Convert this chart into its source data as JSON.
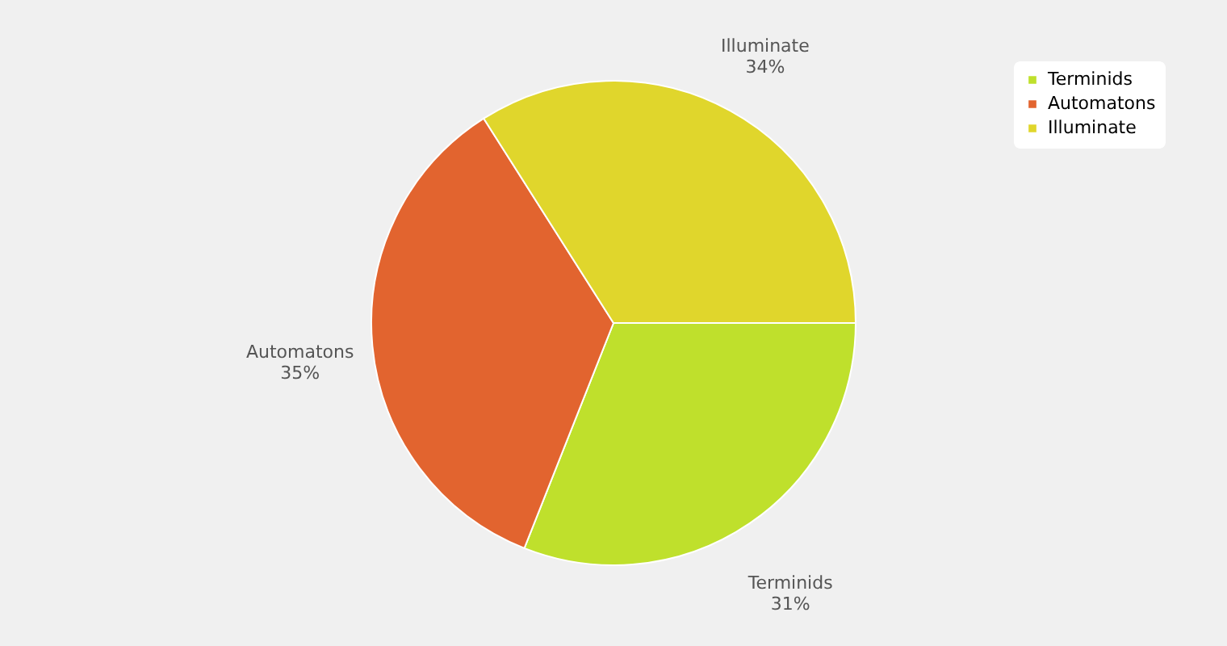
{
  "chart_data": {
    "type": "pie",
    "categories": [
      "Terminids",
      "Automatons",
      "Illuminate"
    ],
    "values": [
      31,
      35,
      34
    ],
    "colors": [
      "#bfe02c",
      "#e2642f",
      "#e0d62c"
    ],
    "value_labels": [
      "31%",
      "35%",
      "34%"
    ],
    "legend": "top right"
  }
}
